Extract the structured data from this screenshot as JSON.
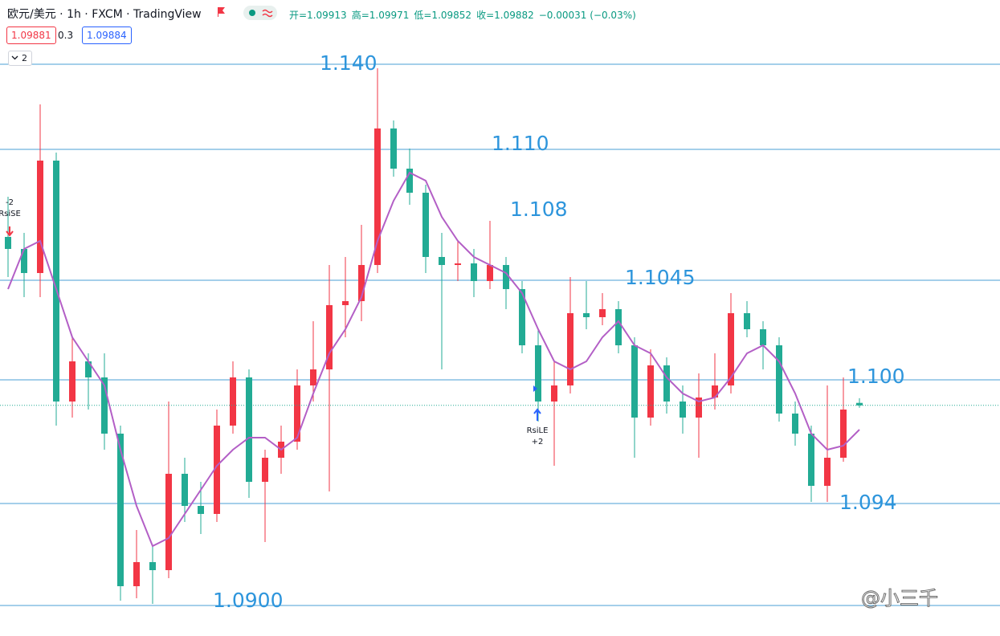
{
  "header": {
    "title": "欧元/美元 · 1h · FXCM · TradingView",
    "legend": [
      "开=1.09913",
      "高=1.09971",
      "低=1.09852",
      "收=1.09882",
      "−0.00031 (−0.03%)"
    ],
    "bid": "1.09881",
    "spread": "0.3",
    "ask": "1.09884",
    "indicator_count": "2"
  },
  "level_labels": [
    "1.140",
    "1.110",
    "1.108",
    "1.1045",
    "1.100",
    "1.094",
    "1.0900"
  ],
  "signals": {
    "short": {
      "count": "-2",
      "name": "RsiSE"
    },
    "long": {
      "name": "RsiLE",
      "count": "+2"
    }
  },
  "watermark": "@小三千",
  "chart_data": {
    "type": "candlestick",
    "categories": [
      null,
      null,
      null,
      null,
      null,
      null,
      null,
      null,
      null,
      null,
      null,
      null,
      null,
      null,
      null,
      null,
      null,
      null,
      null,
      null,
      null,
      null,
      null,
      null,
      null,
      null,
      null,
      null,
      null,
      null,
      null,
      null,
      null,
      null,
      null,
      null,
      null,
      null,
      null,
      null,
      null,
      null,
      null,
      null,
      null,
      null,
      null,
      null,
      null,
      null,
      null,
      null,
      null,
      null
    ],
    "open": [
      1.1198,
      1.1183,
      1.1153,
      1.1293,
      1.0993,
      1.1043,
      1.1023,
      1.0953,
      1.0763,
      1.0793,
      1.0783,
      1.0903,
      1.0863,
      1.0853,
      1.0963,
      1.1023,
      1.0893,
      1.0923,
      1.0943,
      1.1013,
      1.1033,
      1.1113,
      1.1118,
      1.1163,
      1.1333,
      1.1283,
      1.1253,
      1.1173,
      1.1163,
      1.1165,
      1.1143,
      1.1163,
      1.1133,
      1.1063,
      1.0993,
      1.1013,
      1.1103,
      1.1098,
      1.1108,
      1.1063,
      1.0973,
      1.1038,
      1.0993,
      1.0973,
      1.0998,
      1.1013,
      1.1103,
      1.1083,
      1.1063,
      1.0978,
      1.0953,
      1.0888,
      1.0923,
      1.09913
    ],
    "high": [
      1.1248,
      1.1203,
      1.1363,
      1.1303,
      1.1073,
      1.1053,
      1.1053,
      1.0963,
      1.0833,
      1.0813,
      1.0993,
      1.0923,
      1.0893,
      1.0983,
      1.1043,
      1.1033,
      1.0933,
      1.0963,
      1.1033,
      1.1093,
      1.1163,
      1.1173,
      1.1213,
      1.1408,
      1.1343,
      1.1308,
      1.1263,
      1.1203,
      1.1193,
      1.1183,
      1.1218,
      1.1173,
      1.1143,
      1.1083,
      1.1043,
      1.1148,
      1.1143,
      1.1128,
      1.1118,
      1.1073,
      1.1058,
      1.1048,
      1.1013,
      1.1028,
      1.1053,
      1.1128,
      1.1118,
      1.1093,
      1.1073,
      1.0993,
      1.0963,
      1.1013,
      1.1023,
      1.09971
    ],
    "low": [
      1.1148,
      1.1123,
      1.1123,
      1.0963,
      1.0973,
      1.0983,
      1.0933,
      1.0745,
      1.0748,
      1.0741,
      1.0773,
      1.0843,
      1.0828,
      1.0843,
      1.0953,
      1.0873,
      1.0818,
      1.0903,
      1.0933,
      1.0993,
      1.0881,
      1.1073,
      1.1093,
      1.1153,
      1.1273,
      1.1238,
      1.1153,
      1.1033,
      1.1143,
      1.1123,
      1.1133,
      1.1108,
      1.1053,
      1.0968,
      1.0913,
      1.1003,
      1.1083,
      1.1088,
      1.1053,
      1.0923,
      1.0963,
      1.0978,
      1.0953,
      1.0923,
      1.0983,
      1.1003,
      1.1073,
      1.1033,
      1.0968,
      1.0938,
      1.0868,
      1.0868,
      1.0918,
      1.09852
    ],
    "close": [
      1.1183,
      1.1153,
      1.1293,
      1.0993,
      1.1043,
      1.1023,
      1.0953,
      1.0763,
      1.0793,
      1.0783,
      1.0903,
      1.0863,
      1.0853,
      1.0963,
      1.1023,
      1.0893,
      1.0923,
      1.0943,
      1.1013,
      1.1033,
      1.1113,
      1.1118,
      1.1163,
      1.1333,
      1.1283,
      1.1253,
      1.1173,
      1.1163,
      1.1165,
      1.1143,
      1.1163,
      1.1133,
      1.1063,
      1.0993,
      1.1013,
      1.1103,
      1.1098,
      1.1108,
      1.1063,
      1.0973,
      1.1038,
      1.0993,
      1.0973,
      1.0998,
      1.1013,
      1.1103,
      1.1083,
      1.1063,
      1.0978,
      1.0953,
      1.0888,
      1.0923,
      1.0983,
      1.09882
    ],
    "up_color": "#f23645",
    "down_color": "#22ab94",
    "ma": {
      "color": "#b35fc6",
      "values": [
        1.1133,
        1.1183,
        1.1193,
        1.1133,
        1.1073,
        1.1043,
        1.1013,
        1.0933,
        1.0863,
        1.0813,
        1.0823,
        1.0853,
        1.0883,
        1.0913,
        1.0933,
        1.0948,
        1.0948,
        1.0933,
        1.0948,
        1.1003,
        1.1053,
        1.1083,
        1.1123,
        1.1193,
        1.1243,
        1.1278,
        1.1268,
        1.1223,
        1.1193,
        1.1173,
        1.1163,
        1.1153,
        1.1128,
        1.1083,
        1.1043,
        1.1033,
        1.1043,
        1.1073,
        1.1093,
        1.1063,
        1.1053,
        1.1023,
        1.1003,
        1.0993,
        1.0998,
        1.1023,
        1.1053,
        1.1063,
        1.1043,
        1.1003,
        1.0953,
        1.0933,
        1.0938,
        1.0958
      ]
    },
    "ylim": [
      1.0701,
      1.1493
    ],
    "grid": false
  }
}
